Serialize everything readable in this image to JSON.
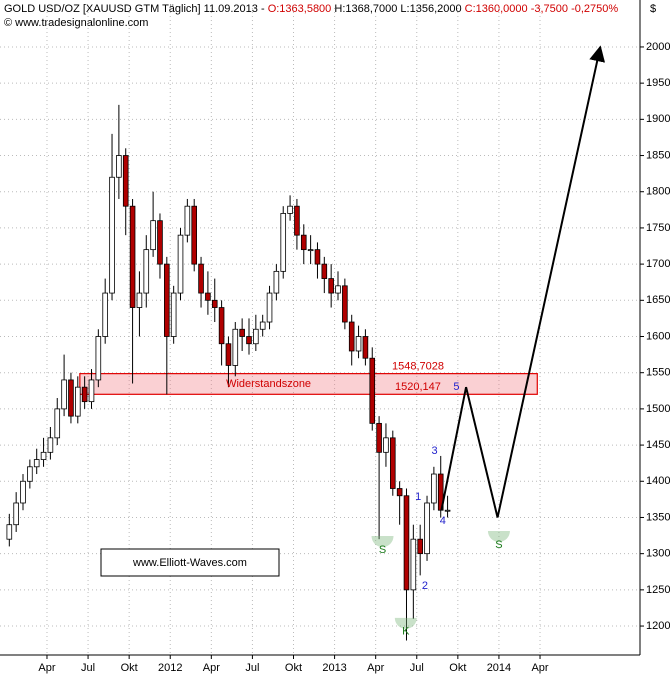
{
  "chart_data": {
    "type": "candlestick",
    "header": [
      {
        "text": "GOLD USD/OZ [XAUUSD GTM  Täglich] 11.09.2013 - ",
        "color": "#000000"
      },
      {
        "text": "O:1363,5800",
        "color": "#d00000"
      },
      {
        "text": " H:1368,7000 L:1356,2000 ",
        "color": "#000000"
      },
      {
        "text": "C:1360,0000 -3,7500 -0,2750%",
        "color": "#d00000"
      }
    ],
    "copyright": "© www.tradesignalonline.com",
    "y_unit": "$",
    "watermark": "www.Elliott-Waves.com",
    "up_color": "#ffffff",
    "down_color": "#b00000",
    "x": [
      0.25,
      0.75,
      1.25,
      1.75,
      2.25,
      2.75,
      3.25,
      3.75,
      4.25,
      4.75,
      5.25,
      5.75,
      6.25,
      6.75,
      7.25,
      7.75,
      8.25,
      8.75,
      9.25,
      9.75,
      10.25,
      10.75,
      11.25,
      11.75,
      12.25,
      12.75,
      13.25,
      13.75,
      14.25,
      14.75,
      15.25,
      15.75,
      16.25,
      16.75,
      17.25,
      17.75,
      18.25,
      18.75,
      19.25,
      19.75,
      20.25,
      20.75,
      21.25,
      21.75,
      22.25,
      22.75,
      23.25,
      23.75,
      24.25,
      24.75,
      25.25,
      25.75,
      26.25,
      26.75,
      27.25,
      27.75,
      28.25,
      28.75,
      29.25,
      29.75,
      30.25,
      30.75,
      31.25,
      31.75,
      32.25
    ],
    "open": [
      1320,
      1340,
      1370,
      1400,
      1420,
      1430,
      1440,
      1460,
      1500,
      1540,
      1490,
      1530,
      1510,
      1540,
      1600,
      1660,
      1820,
      1850,
      1780,
      1640,
      1660,
      1720,
      1760,
      1700,
      1600,
      1660,
      1740,
      1780,
      1700,
      1660,
      1650,
      1640,
      1590,
      1560,
      1610,
      1600,
      1590,
      1610,
      1620,
      1660,
      1690,
      1770,
      1780,
      1740,
      1720,
      1720,
      1700,
      1680,
      1660,
      1670,
      1620,
      1580,
      1600,
      1570,
      1480,
      1440,
      1460,
      1390,
      1380,
      1250,
      1320,
      1300,
      1370,
      1410,
      1360
    ],
    "high": [
      1355,
      1385,
      1410,
      1430,
      1445,
      1460,
      1475,
      1515,
      1575,
      1550,
      1545,
      1545,
      1555,
      1610,
      1680,
      1880,
      1920,
      1860,
      1790,
      1690,
      1740,
      1800,
      1770,
      1710,
      1670,
      1750,
      1790,
      1790,
      1710,
      1690,
      1680,
      1650,
      1600,
      1620,
      1625,
      1625,
      1630,
      1630,
      1670,
      1700,
      1780,
      1795,
      1790,
      1755,
      1740,
      1730,
      1710,
      1700,
      1690,
      1680,
      1630,
      1615,
      1610,
      1585,
      1490,
      1480,
      1470,
      1400,
      1390,
      1340,
      1340,
      1380,
      1420,
      1435,
      1380
    ],
    "low": [
      1310,
      1330,
      1360,
      1390,
      1410,
      1420,
      1430,
      1450,
      1490,
      1480,
      1480,
      1500,
      1500,
      1530,
      1590,
      1650,
      1790,
      1740,
      1535,
      1600,
      1640,
      1710,
      1680,
      1520,
      1590,
      1650,
      1730,
      1690,
      1640,
      1630,
      1620,
      1560,
      1530,
      1545,
      1580,
      1575,
      1580,
      1600,
      1610,
      1650,
      1680,
      1760,
      1720,
      1700,
      1700,
      1680,
      1660,
      1640,
      1650,
      1610,
      1560,
      1570,
      1560,
      1470,
      1320,
      1420,
      1380,
      1340,
      1180,
      1210,
      1270,
      1290,
      1360,
      1350,
      1350
    ],
    "close": [
      1340,
      1370,
      1400,
      1420,
      1430,
      1440,
      1460,
      1500,
      1540,
      1490,
      1530,
      1510,
      1540,
      1600,
      1660,
      1820,
      1850,
      1780,
      1640,
      1660,
      1720,
      1760,
      1700,
      1600,
      1660,
      1740,
      1780,
      1700,
      1660,
      1650,
      1640,
      1590,
      1560,
      1610,
      1600,
      1590,
      1610,
      1620,
      1660,
      1690,
      1770,
      1780,
      1740,
      1720,
      1720,
      1700,
      1680,
      1660,
      1670,
      1620,
      1580,
      1600,
      1570,
      1480,
      1440,
      1460,
      1390,
      1380,
      1250,
      1320,
      1300,
      1370,
      1410,
      1360,
      1360
    ],
    "xlim": [
      -0.43,
      46.3
    ],
    "ylim": [
      1160,
      2040
    ],
    "yticks": [
      1200,
      1250,
      1300,
      1350,
      1400,
      1450,
      1500,
      1550,
      1600,
      1650,
      1700,
      1750,
      1800,
      1850,
      1900,
      1950,
      2000
    ],
    "xticks": [
      {
        "value": 3,
        "label": "Apr"
      },
      {
        "value": 6,
        "label": "Jul"
      },
      {
        "value": 9,
        "label": "Okt"
      },
      {
        "value": 12,
        "label": "2012"
      },
      {
        "value": 15,
        "label": "Apr"
      },
      {
        "value": 18,
        "label": "Jul"
      },
      {
        "value": 21,
        "label": "Okt"
      },
      {
        "value": 24,
        "label": "2013"
      },
      {
        "value": 27,
        "label": "Apr"
      },
      {
        "value": 30,
        "label": "Jul"
      },
      {
        "value": 33,
        "label": "Okt"
      },
      {
        "value": 36,
        "label": "2014"
      },
      {
        "value": 39,
        "label": "Apr"
      }
    ],
    "grid": true,
    "band": {
      "label": "Widerstandszone",
      "x": [
        5.4,
        38.8
      ],
      "upper": {
        "value": 1548.7028,
        "label": "1548,7028"
      },
      "lower": {
        "value": 1520.147,
        "label": "1520,147"
      }
    },
    "waves": [
      {
        "label": "1",
        "x": 30.1,
        "y": 1378,
        "color": "#2222cc"
      },
      {
        "label": "2",
        "x": 30.6,
        "y": 1255,
        "color": "#2222cc"
      },
      {
        "label": "3",
        "x": 31.3,
        "y": 1442,
        "color": "#2222cc"
      },
      {
        "label": "4",
        "x": 31.9,
        "y": 1345,
        "color": "#2222cc"
      },
      {
        "label": "5",
        "x": 32.9,
        "y": 1530,
        "color": "#2222cc"
      },
      {
        "label": "S",
        "x": 27.5,
        "y": 1305,
        "color": "#1a7a1a"
      },
      {
        "label": "S",
        "x": 36.0,
        "y": 1312,
        "color": "#1a7a1a"
      },
      {
        "label": "K",
        "x": 29.2,
        "y": 1192,
        "color": "#1a7a1a"
      }
    ],
    "projection": {
      "x": [
        31.8,
        33.6,
        35.9,
        43.4
      ],
      "y": [
        1360,
        1530,
        1350,
        2000
      ]
    }
  }
}
